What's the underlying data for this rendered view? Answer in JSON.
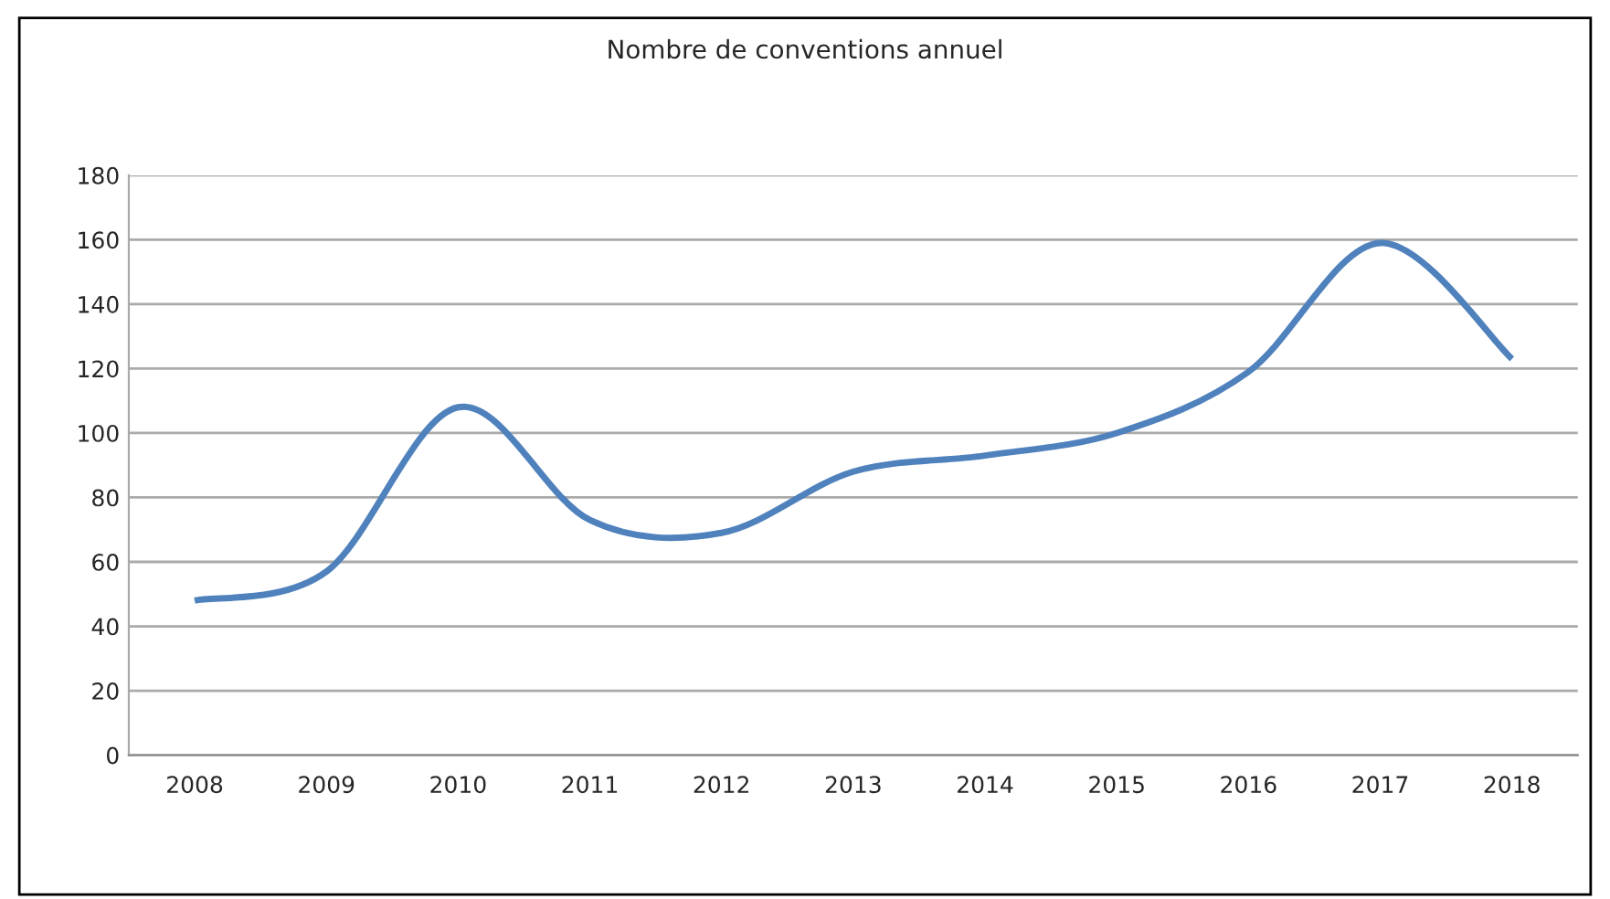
{
  "chart_data": {
    "type": "line",
    "title": "Nombre de conventions annuel",
    "categories": [
      "2008",
      "2009",
      "2010",
      "2011",
      "2012",
      "2013",
      "2014",
      "2015",
      "2016",
      "2017",
      "2018"
    ],
    "series": [
      {
        "color": "#4f81bd",
        "values": [
          48,
          57,
          108,
          73,
          69,
          88,
          93,
          100,
          119,
          159,
          123
        ]
      }
    ],
    "ylim": [
      0,
      180
    ],
    "yticks": [
      0,
      20,
      40,
      60,
      80,
      100,
      120,
      140,
      160,
      180
    ],
    "grid": "y",
    "line_style": "solid",
    "marker": "none",
    "legend": false
  }
}
